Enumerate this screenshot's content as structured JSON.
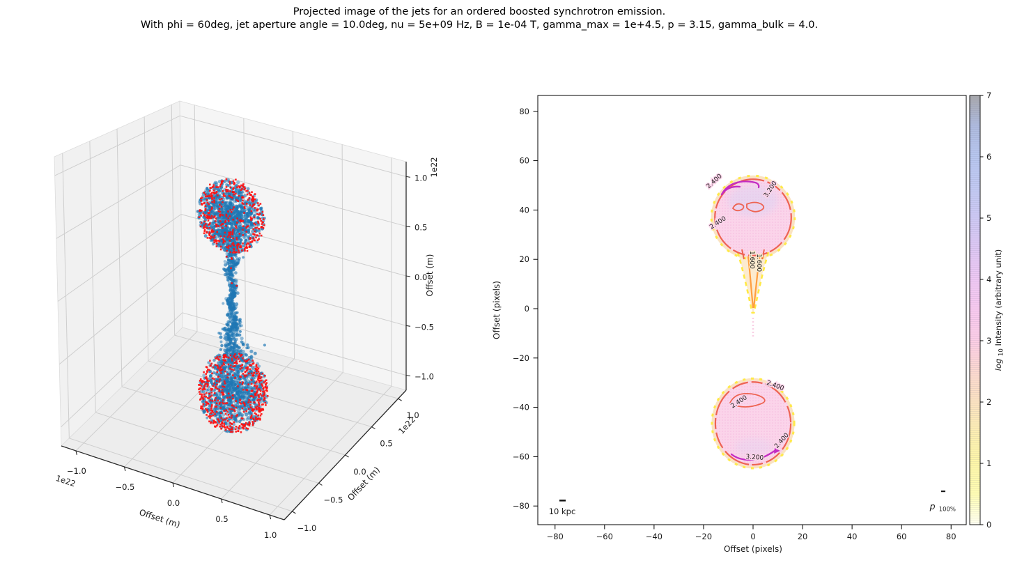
{
  "title": {
    "line1": "Projected image of the jets for an ordered boosted synchrotron emission.",
    "line2": "With phi = 60deg, jet aperture angle = 10.0deg, nu = 5e+09 Hz, B = 1e-04 T, gamma_max = 1e+4.5, p = 3.15, gamma_bulk = 4.0."
  },
  "left_plot": {
    "x_label": "Offset (m)",
    "y_label": "Offset (m)",
    "z_label": "Offset (m)",
    "scale_note": "1e22",
    "x_tick_labels": [
      "−1.0",
      "−0.5",
      "0.0",
      "0.5",
      "1.0"
    ],
    "y_tick_labels": [
      "−1.0",
      "−0.5",
      "0.0",
      "0.5",
      "1.0"
    ],
    "z_tick_labels": [
      "−1.0",
      "−0.5",
      "0.0",
      "0.5",
      "1.0"
    ],
    "colors": {
      "scatter_blue": "#1f77b4",
      "scatter_red": "#ff0f0f",
      "pane_left": "#f1f1f1",
      "pane_right": "#f5f5f5",
      "pane_bottom": "#ededed",
      "grid": "#cecece",
      "spine": "#2a2a2a"
    }
  },
  "right_plot": {
    "x_label": "Offset (pixels)",
    "y_label": "Offset (pixels)",
    "x_tick_labels": [
      "−80",
      "−60",
      "−40",
      "−20",
      "0",
      "20",
      "40",
      "60",
      "80"
    ],
    "y_tick_labels": [
      "80",
      "60",
      "40",
      "20",
      "0",
      "−20",
      "−40",
      "−60",
      "−80"
    ],
    "scalebar_label": "10 kpc",
    "polarization_label_main": "p",
    "polarization_label_sub": "100%"
  },
  "colorbar": {
    "label_log": "log",
    "label_sub": "10",
    "label_rest": " Intensity (arbitrary unit)",
    "tick_labels": [
      "0",
      "1",
      "2",
      "3",
      "4",
      "5",
      "6",
      "7"
    ],
    "stops": [
      {
        "at": 0.0,
        "color": "#fffff0"
      },
      {
        "at": 0.5,
        "color": "#fefcb4"
      },
      {
        "at": 1.0,
        "color": "#fdf6a8"
      },
      {
        "at": 1.5,
        "color": "#fceeb2"
      },
      {
        "at": 2.0,
        "color": "#fbe2c1"
      },
      {
        "at": 2.5,
        "color": "#fbd8cf"
      },
      {
        "at": 3.0,
        "color": "#fbcde5"
      },
      {
        "at": 3.5,
        "color": "#f7c9ee"
      },
      {
        "at": 4.0,
        "color": "#eec7f3"
      },
      {
        "at": 4.5,
        "color": "#ddc7f3"
      },
      {
        "at": 5.0,
        "color": "#cdc8f3"
      },
      {
        "at": 5.5,
        "color": "#c1c9f2"
      },
      {
        "at": 6.0,
        "color": "#b7c6ee"
      },
      {
        "at": 6.5,
        "color": "#aebade"
      },
      {
        "at": 7.0,
        "color": "#a8a8ac"
      }
    ]
  },
  "chart_data": [
    {
      "type": "scatter",
      "projection": "3d",
      "xlabel": "Offset (m)",
      "ylabel": "Offset (m)",
      "zlabel": "Offset (m)",
      "axis_unit_scale": "1e22",
      "xlim": [
        -1.15e+22,
        1.15e+22
      ],
      "ylim": [
        -1.15e+22,
        1.15e+22
      ],
      "zlim": [
        -1.15e+22,
        1.15e+22
      ],
      "xticks": [
        -1.0,
        -0.5,
        0.0,
        0.5,
        1.0
      ],
      "yticks": [
        -1.0,
        -0.5,
        0.0,
        0.5,
        1.0
      ],
      "zticks": [
        -1.0,
        -0.5,
        0.0,
        0.5,
        1.0
      ],
      "grid": true,
      "series": [
        {
          "name": "jet-plasma-points-blue",
          "color": "#1f77b4",
          "marker": "circle",
          "alpha": 0.55,
          "structure": {
            "top_lobe": {
              "center_1e22m": [
                0,
                0,
                0.75
              ],
              "radius_1e22m": 0.3,
              "n": 950
            },
            "bottom_lobe": {
              "center_1e22m": [
                0,
                0,
                -0.885
              ],
              "radius_1e22m": 0.32,
              "n": 900
            },
            "jet_column": {
              "z_range_1e22m": [
                -0.62,
                0.62
              ],
              "n": 750
            }
          }
        },
        {
          "name": "emitting-particles-red",
          "color": "#ff0f0f",
          "marker": "square",
          "alpha": 0.9,
          "structure": {
            "top_lobe_n": 380,
            "bottom_lobe_n": 520,
            "jet_n": 25
          }
        }
      ]
    },
    {
      "type": "contour_image",
      "xlabel": "Offset (pixels)",
      "ylabel": "Offset (pixels)",
      "xlim": [
        -87,
        86
      ],
      "ylim": [
        -88,
        87
      ],
      "xticks": [
        -80,
        -60,
        -40,
        -20,
        0,
        20,
        40,
        60,
        80
      ],
      "yticks": [
        80,
        60,
        40,
        20,
        0,
        -20,
        -40,
        -60,
        -80
      ],
      "colorbar_range": [
        0,
        7
      ],
      "colorbar_ticks": [
        0,
        1,
        2,
        3,
        4,
        5,
        6,
        7
      ],
      "colorbar_label": "log10 Intensity (arbitrary unit)",
      "lobes": [
        {
          "name": "top-lobe",
          "center": [
            0,
            37
          ],
          "radius": 16,
          "peak_log10_intensity": 3.2
        },
        {
          "name": "bottom-lobe",
          "center": [
            0,
            -46.5
          ],
          "radius": 16.5,
          "peak_log10_intensity": 3.2
        }
      ],
      "jet_funnel": {
        "from": [
          0,
          21
        ],
        "to": [
          0,
          -2.5
        ],
        "half_width_top": 6.2
      },
      "contour_levels": [
        {
          "value": 0.8,
          "color": "#ffe93a"
        },
        {
          "value": 1.6,
          "color": "#ff9e3f"
        },
        {
          "value": 2.4,
          "color": "#ee6352"
        },
        {
          "value": 3.2,
          "color": "#c32cc3"
        }
      ],
      "labels": [
        {
          "text": "2.400",
          "x": -15.2,
          "y": 51.1,
          "rot": -42,
          "level": 2.4
        },
        {
          "text": "3.200",
          "x": 7.6,
          "y": 48.0,
          "rot": -56,
          "level": 3.2
        },
        {
          "text": "2.400",
          "x": -13.8,
          "y": 34.2,
          "rot": -33,
          "level": 2.4
        },
        {
          "text": "1.600",
          "x": -1.1,
          "y": 19.8,
          "rot": 90,
          "level": 1.6
        },
        {
          "text": "1.600",
          "x": 1.7,
          "y": 18.6,
          "rot": 90,
          "level": 1.6
        },
        {
          "text": "2.400",
          "x": 8.7,
          "y": -31.9,
          "rot": 20,
          "level": 2.4
        },
        {
          "text": "2.400",
          "x": -5.3,
          "y": -38.4,
          "rot": -33,
          "level": 2.4
        },
        {
          "text": "2.400",
          "x": 12.1,
          "y": -54.0,
          "rot": -48,
          "level": 2.4
        },
        {
          "text": "3.200",
          "x": 0.6,
          "y": -61.0,
          "rot": 4,
          "level": 3.2
        }
      ],
      "image_colors": {
        "background": "#ffffff",
        "lobe_fill": "#fbd4ea",
        "lobe_dot": "#f5bbde",
        "lavender_core": "#d9d4f4",
        "funnel_fill": "#fcebcf",
        "rim_peach": "#fae3c2",
        "trail_pink": "#f9cfe4"
      },
      "scalebar": {
        "label": "10 kpc"
      },
      "polarization_key": {
        "label": "p100%"
      }
    }
  ]
}
